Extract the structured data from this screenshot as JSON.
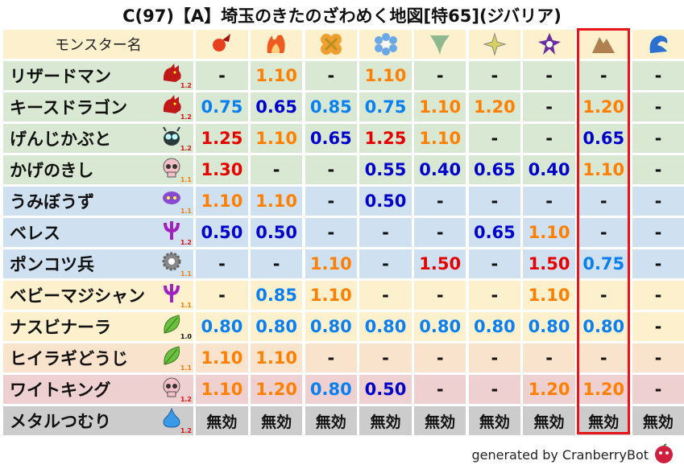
{
  "title": "C(97)【A】埼玉のきたのざわめく地図[特65](ジバリア)",
  "header": {
    "name_label": "モンスター名",
    "elements": [
      {
        "icon": "fireball-icon",
        "color": "#e8401c"
      },
      {
        "icon": "flame-icon",
        "color": "#f05a1e"
      },
      {
        "icon": "explosion-icon",
        "color": "#f0a030"
      },
      {
        "icon": "snowflake-icon",
        "color": "#6aa8e8"
      },
      {
        "icon": "tornado-icon",
        "color": "#8fb890"
      },
      {
        "icon": "lightning-icon",
        "color": "#d8d060"
      },
      {
        "icon": "dark-vortex-icon",
        "color": "#6a2ca0"
      },
      {
        "icon": "rock-mountain-icon",
        "color": "#b08050"
      },
      {
        "icon": "water-wave-icon",
        "color": "#2a70d0"
      }
    ]
  },
  "highlighted_column": 8,
  "highlight_color": "#e8141b",
  "value_colors": {
    "strong_resist": "#0000cc",
    "resist": "#0a80f0",
    "weak": "#ff8000",
    "very_weak": "#e60000",
    "neutral": "#111111"
  },
  "rows": [
    {
      "name": "リザードマン",
      "icon": "red-dragon-icon",
      "badge": "1.2",
      "bg": "#d9e8d2",
      "values": [
        "-",
        "1.10",
        "-",
        "1.10",
        "-",
        "-",
        "-",
        "-",
        "-"
      ]
    },
    {
      "name": "キースドラゴン",
      "icon": "red-dragon-icon",
      "badge": "1.2",
      "bg": "#d9e8d2",
      "values": [
        "0.75",
        "0.65",
        "0.85",
        "0.75",
        "1.10",
        "1.20",
        "-",
        "1.20",
        "-"
      ]
    },
    {
      "name": "げんじかぶと",
      "icon": "beetle-icon",
      "badge": "1.2",
      "bg": "#d9e8d2",
      "values": [
        "1.25",
        "1.10",
        "0.65",
        "1.25",
        "1.10",
        "-",
        "-",
        "0.65",
        "-"
      ]
    },
    {
      "name": "かげのきし",
      "icon": "skull-icon",
      "badge": "1.1",
      "bg": "#d9e8d2",
      "values": [
        "1.30",
        "-",
        "-",
        "0.55",
        "0.40",
        "0.65",
        "0.40",
        "1.10",
        "-"
      ]
    },
    {
      "name": "うみぼうず",
      "icon": "purple-octopus-icon",
      "badge": "1.1",
      "bg": "#cfe0f1",
      "values": [
        "1.10",
        "1.10",
        "-",
        "0.50",
        "-",
        "-",
        "-",
        "-",
        "-"
      ]
    },
    {
      "name": "ベレス",
      "icon": "trident-icon",
      "badge": "1.2",
      "bg": "#cfe0f1",
      "values": [
        "0.50",
        "0.50",
        "-",
        "-",
        "-",
        "0.65",
        "1.10",
        "-",
        "-"
      ]
    },
    {
      "name": "ポンコツ兵",
      "icon": "gear-icon",
      "badge": "1.1",
      "bg": "#cfe0f1",
      "values": [
        "-",
        "-",
        "1.10",
        "-",
        "1.50",
        "-",
        "1.50",
        "0.75",
        "-"
      ]
    },
    {
      "name": "ベビーマジシャン",
      "icon": "trident-icon",
      "badge": "1.1",
      "bg": "#fdf0cd",
      "values": [
        "-",
        "0.85",
        "1.10",
        "-",
        "-",
        "-",
        "1.10",
        "-",
        "-"
      ]
    },
    {
      "name": "ナスビナーラ",
      "icon": "leaf-icon",
      "badge": "1.0",
      "bg": "#fdf0cd",
      "values": [
        "0.80",
        "0.80",
        "0.80",
        "0.80",
        "0.80",
        "0.80",
        "0.80",
        "0.80",
        "-"
      ]
    },
    {
      "name": "ヒイラギどうじ",
      "icon": "leaf-icon",
      "badge": "1.1",
      "bg": "#fae3cc",
      "values": [
        "1.10",
        "1.10",
        "-",
        "-",
        "-",
        "-",
        "-",
        "-",
        "-"
      ]
    },
    {
      "name": "ワイトキング",
      "icon": "skull-icon",
      "badge": "1.2",
      "bg": "#efd0d0",
      "values": [
        "1.10",
        "1.20",
        "0.80",
        "0.50",
        "-",
        "-",
        "1.20",
        "1.20",
        "-"
      ]
    },
    {
      "name": "メタルつむり",
      "icon": "blue-slime-icon",
      "badge": "1.2",
      "bg": "#cccccc",
      "values": [
        "無効",
        "無効",
        "無効",
        "無効",
        "無効",
        "無効",
        "無効",
        "無効",
        "無効"
      ]
    }
  ],
  "footer": {
    "text": "generated by CranberryBot",
    "icon": "cranberry-icon"
  }
}
